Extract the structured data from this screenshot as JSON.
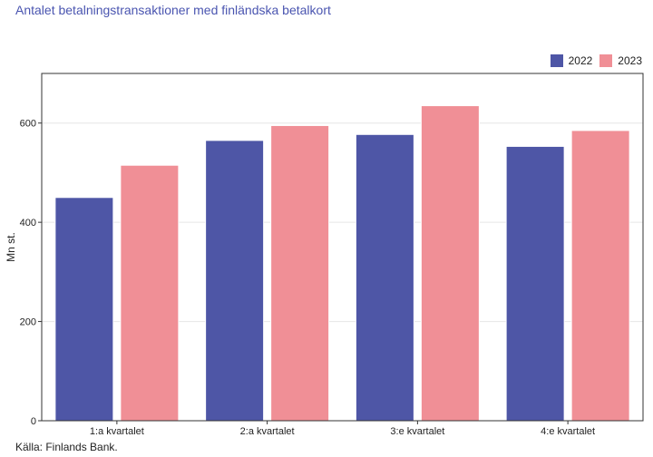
{
  "colors": {
    "series_2022": "#4e56a6",
    "series_2023": "#f08f96",
    "title": "#4a55b0"
  },
  "chart_data": {
    "type": "bar",
    "title": "Antalet betalningstransaktioner med finländska betalkort",
    "xlabel": "",
    "ylabel": "Mn st.",
    "categories": [
      "1:a kvartalet",
      "2:a kvartalet",
      "3:e kvartalet",
      "4:e kvartalet"
    ],
    "series": [
      {
        "name": "2022",
        "values": [
          450,
          565,
          577,
          553
        ]
      },
      {
        "name": "2023",
        "values": [
          515,
          595,
          635,
          585
        ]
      }
    ],
    "ylim": [
      0,
      700
    ],
    "yticks": [
      0,
      200,
      400,
      600
    ],
    "grid": true,
    "legend_position": "top-right",
    "source": "Källa: Finlands Bank."
  }
}
